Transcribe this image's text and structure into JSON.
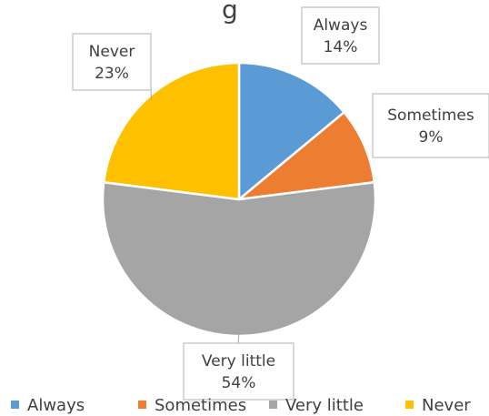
{
  "chart_data": {
    "type": "pie",
    "title": "g",
    "categories": [
      "Always",
      "Sometimes",
      "Very little",
      "Never"
    ],
    "values": [
      14,
      9,
      54,
      23
    ],
    "data_labels": [
      {
        "category": "Always",
        "value": "14%"
      },
      {
        "category": "Sometimes",
        "value": "9%"
      },
      {
        "category": "Very little",
        "value": "54%"
      },
      {
        "category": "Never",
        "value": "23%"
      }
    ],
    "colors": [
      "#5b9bd5",
      "#ed7d31",
      "#a5a5a5",
      "#ffc000"
    ],
    "legend_placement": "bottom",
    "legend": [
      "Always",
      "Sometimes",
      "Very little",
      "Never"
    ]
  }
}
